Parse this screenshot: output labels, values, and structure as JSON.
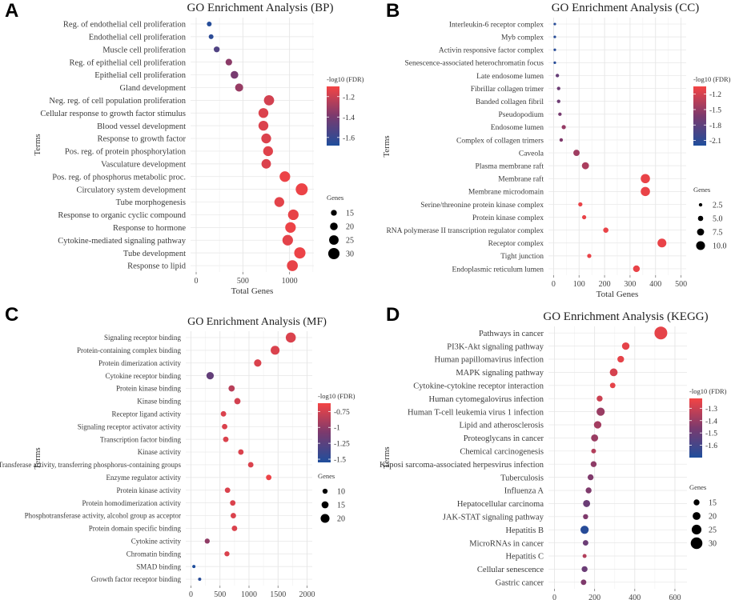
{
  "panel_labels": [
    "A",
    "B",
    "C",
    "D"
  ],
  "chart_data": [
    {
      "type": "scatter",
      "title": "GO Enrichment Analysis (BP)",
      "xlabel": "Total Genes",
      "ylabel": "Terms",
      "xlim": [
        -60,
        1260
      ],
      "xticks": [
        0,
        500,
        1000
      ],
      "color_legend": {
        "title": "-log10 (FDR)",
        "range": [
          -1.68,
          -1.1
        ],
        "ticks": [
          -1.2,
          -1.4,
          -1.6
        ],
        "low_color": "#1f4e9c",
        "high_color": "#f44444"
      },
      "size_legend": {
        "title": "Genes",
        "values": [
          15,
          20,
          25,
          30
        ],
        "range": [
          12,
          32
        ]
      },
      "terms": [
        "Reg. of endothelial cell proliferation",
        "Endothelial cell proliferation",
        "Muscle cell proliferation",
        "Reg. of epithelial cell proliferation",
        "Epithelial cell proliferation",
        "Gland development",
        "Neg. reg. of cell population proliferation",
        "Cellular response to growth factor stimulus",
        "Blood vessel development",
        "Response to growth factor",
        "Pos. reg. of protein phosphorylation",
        "Vasculature development",
        "Pos. reg. of phosphorus metabolic proc.",
        "Circulatory system development",
        "Tube morphogenesis",
        "Response to organic cyclic compound",
        "Response to hormone",
        "Cytokine-mediated signaling pathway",
        "Tube development",
        "Response to lipid"
      ],
      "x": [
        140,
        160,
        220,
        350,
        410,
        460,
        780,
        720,
        720,
        750,
        770,
        750,
        950,
        1130,
        890,
        1040,
        1010,
        980,
        1110,
        1030
      ],
      "genes": [
        12,
        12,
        15,
        17,
        20,
        21,
        27,
        26,
        26,
        26,
        26,
        25,
        28,
        32,
        26,
        28,
        28,
        28,
        30,
        29
      ],
      "fdr": [
        -1.66,
        -1.64,
        -1.52,
        -1.35,
        -1.4,
        -1.32,
        -1.18,
        -1.16,
        -1.16,
        -1.16,
        -1.15,
        -1.16,
        -1.12,
        -1.12,
        -1.14,
        -1.13,
        -1.12,
        -1.14,
        -1.12,
        -1.13
      ]
    },
    {
      "type": "scatter",
      "title": "GO Enrichment Analysis (CC)",
      "xlabel": "Total Genes",
      "ylabel": "Terms",
      "xlim": [
        -20,
        520
      ],
      "xticks": [
        0,
        100,
        200,
        300,
        400,
        500
      ],
      "color_legend": {
        "title": "-log10 (FDR)",
        "range": [
          -2.2,
          -1.05
        ],
        "ticks": [
          -1.2,
          -1.5,
          -1.8,
          -2.1
        ],
        "low_color": "#1f4e9c",
        "high_color": "#f44444"
      },
      "size_legend": {
        "title": "Genes",
        "values": [
          2.5,
          5.0,
          7.5,
          10.0
        ],
        "range": [
          1,
          11
        ]
      },
      "terms": [
        "Interleukin-6 receptor complex",
        "Myb complex",
        "Activin responsive factor complex",
        "Senescence-associated heterochromatin focus",
        "Late endosome lumen",
        "Fibrillar collagen trimer",
        "Banded collagen fibril",
        "Pseudopodium",
        "Endosome lumen",
        "Complex of collagen trimers",
        "Caveola",
        "Plasma membrane raft",
        "Membrane raft",
        "Membrane microdomain",
        "Serine/threonine protein kinase complex",
        "Protein kinase complex",
        "RNA polymerase II transcription regulator complex",
        "Receptor complex",
        "Tight junction",
        "Endoplasmic reticulum lumen"
      ],
      "x": [
        5,
        5,
        5,
        5,
        15,
        20,
        20,
        25,
        40,
        30,
        90,
        125,
        360,
        360,
        105,
        120,
        205,
        425,
        140,
        325
      ],
      "genes": [
        1.2,
        1.2,
        1.2,
        1.2,
        2.5,
        2.5,
        2.5,
        2.5,
        3.5,
        2.5,
        6.5,
        7.5,
        10.5,
        10.5,
        3.5,
        3.5,
        5,
        10,
        3.5,
        7
      ],
      "fdr": [
        -2.15,
        -2.15,
        -2.15,
        -2.15,
        -1.75,
        -1.7,
        -1.7,
        -1.65,
        -1.5,
        -1.6,
        -1.45,
        -1.4,
        -1.1,
        -1.1,
        -1.1,
        -1.1,
        -1.1,
        -1.1,
        -1.1,
        -1.1
      ]
    },
    {
      "type": "scatter",
      "title": "GO Enrichment Analysis (MF)",
      "xlabel": "Total Genes",
      "ylabel": "Terms",
      "xlim": [
        -90,
        2090
      ],
      "xticks": [
        0,
        500,
        1000,
        1500,
        2000
      ],
      "color_legend": {
        "title": "-log10 (FDR)",
        "range": [
          -1.55,
          -0.62
        ],
        "ticks": [
          -0.75,
          -1.0,
          -1.25,
          -1.5
        ],
        "low_color": "#1f4e9c",
        "high_color": "#f44444"
      },
      "size_legend": {
        "title": "Genes",
        "values": [
          10,
          15,
          20
        ],
        "range": [
          5,
          24
        ]
      },
      "terms": [
        "Signaling receptor binding",
        "Protein-containing complex binding",
        "Protein dimerization activity",
        "Cytokine receptor binding",
        "Protein kinase binding",
        "Kinase binding",
        "Receptor ligand activity",
        "Signaling receptor activator activity",
        "Transcription factor binding",
        "Kinase activity",
        "Transferase activity, transferring phosphorus-containing groups",
        "Enzyme regulator activity",
        "Protein kinase activity",
        "Protein homodimerization activity",
        "Phosphotransferase activity, alcohol group as acceptor",
        "Protein domain specific binding",
        "Cytokine activity",
        "Chromatin binding",
        "SMAD binding",
        "Growth factor receptor binding"
      ],
      "x": [
        1720,
        1450,
        1150,
        330,
        700,
        800,
        560,
        580,
        600,
        860,
        1030,
        1340,
        630,
        720,
        730,
        750,
        280,
        620,
        50,
        150
      ],
      "genes": [
        23,
        20,
        16,
        16,
        13,
        13,
        11,
        11,
        11,
        11,
        11,
        11,
        11,
        11,
        11,
        11,
        10,
        10,
        5,
        5
      ],
      "fdr": [
        -0.72,
        -0.72,
        -0.72,
        -1.2,
        -0.85,
        -0.75,
        -0.72,
        -0.72,
        -0.72,
        -0.72,
        -0.72,
        -0.65,
        -0.72,
        -0.72,
        -0.72,
        -0.72,
        -1.0,
        -0.72,
        -1.55,
        -1.5
      ]
    },
    {
      "type": "scatter",
      "title": "GO Enrichment Analysis (KEGG)",
      "xlabel": "Total Genes",
      "ylabel": "Terms",
      "xlim": [
        -30,
        660
      ],
      "xticks": [
        0,
        200,
        400,
        600
      ],
      "color_legend": {
        "title": "-log10 (FDR)",
        "range": [
          -1.7,
          -1.22
        ],
        "ticks": [
          -1.3,
          -1.4,
          -1.5,
          -1.6
        ],
        "low_color": "#1f4e9c",
        "high_color": "#f44444"
      },
      "size_legend": {
        "title": "Genes",
        "values": [
          15,
          20,
          25,
          30
        ],
        "range": [
          10,
          33
        ]
      },
      "terms": [
        "Pathways in cancer",
        "PI3K-Akt signaling pathway",
        "Human papillomavirus infection",
        "MAPK signaling pathway",
        "Cytokine-cytokine receptor interaction",
        "Human cytomegalovirus infection",
        "Human T-cell leukemia virus 1 infection",
        "Lipid and atherosclerosis",
        "Proteoglycans in cancer",
        "Chemical carcinogenesis",
        "Kaposi sarcoma-associated herpesvirus infection",
        "Tuberculosis",
        "Influenza A",
        "Hepatocellular carcinoma",
        "JAK-STAT signaling pathway",
        "Hepatitis B",
        "MicroRNAs in cancer",
        "Hepatitis C",
        "Cellular senescence",
        "Gastric cancer"
      ],
      "x": [
        530,
        355,
        330,
        295,
        290,
        225,
        230,
        215,
        200,
        195,
        195,
        180,
        170,
        160,
        155,
        150,
        155,
        150,
        150,
        145
      ],
      "genes": [
        33,
        19,
        17,
        20,
        14,
        15,
        21,
        19,
        18,
        12,
        15,
        15,
        15,
        18,
        13,
        21,
        14,
        10,
        15,
        14
      ],
      "fdr": [
        -1.25,
        -1.25,
        -1.25,
        -1.28,
        -1.25,
        -1.3,
        -1.4,
        -1.38,
        -1.4,
        -1.35,
        -1.42,
        -1.45,
        -1.45,
        -1.5,
        -1.45,
        -1.68,
        -1.5,
        -1.35,
        -1.5,
        -1.45
      ]
    }
  ]
}
